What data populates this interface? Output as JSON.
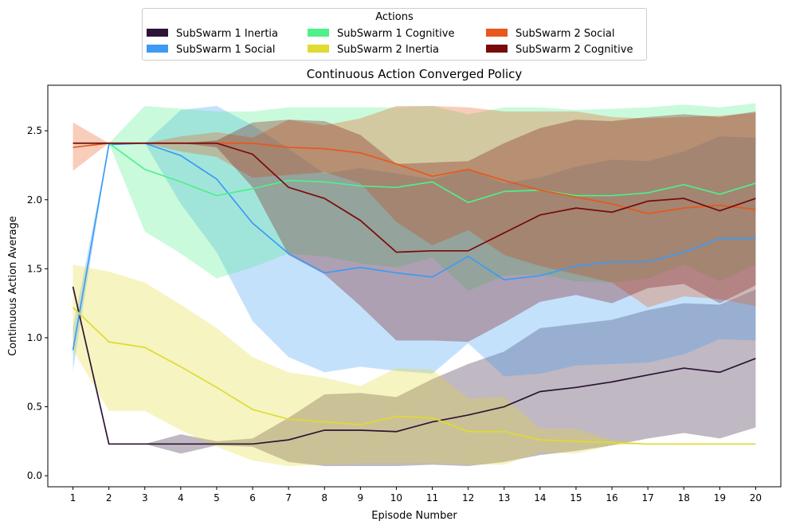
{
  "chart_data": {
    "type": "line",
    "title": "Continuous Action Converged Policy",
    "xlabel": "Episode Number",
    "ylabel": "Continuous Action Average",
    "x": [
      1,
      2,
      3,
      4,
      5,
      6,
      7,
      8,
      9,
      10,
      11,
      12,
      13,
      14,
      15,
      16,
      17,
      18,
      19,
      20
    ],
    "xlim": [
      0.3,
      20.7
    ],
    "ylim": [
      -0.08,
      2.83
    ],
    "yticks": [
      "0.0",
      "0.5",
      "1.0",
      "1.5",
      "2.0",
      "2.5"
    ],
    "grid": false,
    "legend": {
      "title": "Actions",
      "placement": "top-center",
      "columns": 3
    },
    "series": [
      {
        "name": "SubSwarm 1 Inertia",
        "color": "#2d1436",
        "values": [
          1.37,
          0.23,
          0.23,
          0.23,
          0.23,
          0.23,
          0.26,
          0.33,
          0.33,
          0.32,
          0.39,
          0.44,
          0.5,
          0.61,
          0.64,
          0.68,
          0.73,
          0.78,
          0.75,
          0.85
        ],
        "lower": [
          1.37,
          0.23,
          0.23,
          0.16,
          0.22,
          0.21,
          0.1,
          0.07,
          0.07,
          0.07,
          0.08,
          0.07,
          0.1,
          0.15,
          0.18,
          0.22,
          0.27,
          0.31,
          0.27,
          0.35
        ],
        "upper": [
          1.37,
          0.23,
          0.23,
          0.3,
          0.25,
          0.27,
          0.42,
          0.59,
          0.6,
          0.57,
          0.7,
          0.81,
          0.9,
          1.07,
          1.1,
          1.13,
          1.2,
          1.25,
          1.24,
          1.35
        ]
      },
      {
        "name": "SubSwarm 1 Social",
        "color": "#3d9bf5",
        "values": [
          0.91,
          2.4,
          2.41,
          2.32,
          2.15,
          1.83,
          1.61,
          1.47,
          1.51,
          1.47,
          1.44,
          1.59,
          1.42,
          1.45,
          1.52,
          1.55,
          1.55,
          1.62,
          1.72,
          1.72
        ],
        "lower": [
          0.76,
          2.4,
          2.41,
          1.97,
          1.62,
          1.12,
          0.86,
          0.75,
          0.79,
          0.76,
          0.74,
          0.96,
          0.72,
          0.74,
          0.8,
          0.81,
          0.82,
          0.88,
          0.99,
          0.98
        ],
        "upper": [
          1.07,
          2.4,
          2.41,
          2.65,
          2.68,
          2.54,
          2.37,
          2.19,
          2.23,
          2.19,
          2.15,
          2.22,
          2.12,
          2.16,
          2.24,
          2.29,
          2.28,
          2.35,
          2.46,
          2.45
        ]
      },
      {
        "name": "SubSwarm 1 Cognitive",
        "color": "#4ef08a",
        "values": [
          2.41,
          2.41,
          2.22,
          2.13,
          2.03,
          2.08,
          2.14,
          2.13,
          2.1,
          2.09,
          2.13,
          1.98,
          2.06,
          2.07,
          2.03,
          2.03,
          2.05,
          2.11,
          2.04,
          2.12
        ],
        "lower": [
          2.41,
          2.41,
          1.77,
          1.61,
          1.43,
          1.51,
          1.61,
          1.59,
          1.54,
          1.51,
          1.58,
          1.34,
          1.45,
          1.46,
          1.41,
          1.4,
          1.43,
          1.53,
          1.41,
          1.53
        ],
        "upper": [
          2.41,
          2.41,
          2.68,
          2.66,
          2.64,
          2.64,
          2.67,
          2.67,
          2.67,
          2.67,
          2.68,
          2.62,
          2.67,
          2.67,
          2.65,
          2.66,
          2.67,
          2.69,
          2.67,
          2.7
        ]
      },
      {
        "name": "SubSwarm 2 Inertia",
        "color": "#e0da32",
        "values": [
          1.22,
          0.97,
          0.93,
          0.79,
          0.64,
          0.48,
          0.41,
          0.39,
          0.37,
          0.43,
          0.42,
          0.32,
          0.32,
          0.26,
          0.25,
          0.24,
          0.23,
          0.23,
          0.23,
          0.23
        ],
        "lower": [
          0.91,
          0.47,
          0.47,
          0.33,
          0.21,
          0.11,
          0.07,
          0.08,
          0.09,
          0.09,
          0.09,
          0.08,
          0.08,
          0.17,
          0.16,
          0.22,
          0.23,
          0.23,
          0.23,
          0.23
        ],
        "upper": [
          1.53,
          1.48,
          1.4,
          1.24,
          1.07,
          0.86,
          0.75,
          0.71,
          0.65,
          0.78,
          0.77,
          0.56,
          0.57,
          0.34,
          0.34,
          0.26,
          0.23,
          0.23,
          0.23,
          0.23
        ]
      },
      {
        "name": "SubSwarm 2 Social",
        "color": "#e8581a",
        "values": [
          2.38,
          2.41,
          2.41,
          2.41,
          2.41,
          2.41,
          2.38,
          2.37,
          2.34,
          2.26,
          2.17,
          2.22,
          2.14,
          2.07,
          2.02,
          1.97,
          1.9,
          1.94,
          1.96,
          1.93
        ],
        "lower": [
          2.21,
          2.41,
          2.41,
          2.35,
          2.31,
          2.16,
          2.18,
          2.2,
          2.12,
          1.84,
          1.67,
          1.78,
          1.6,
          1.52,
          1.46,
          1.4,
          1.22,
          1.3,
          1.28,
          1.23
        ],
        "upper": [
          2.56,
          2.41,
          2.41,
          2.46,
          2.49,
          2.45,
          2.58,
          2.54,
          2.59,
          2.68,
          2.68,
          2.67,
          2.64,
          2.64,
          2.64,
          2.6,
          2.59,
          2.6,
          2.61,
          2.63
        ]
      },
      {
        "name": "SubSwarm 2 Cognitive",
        "color": "#780a0a",
        "values": [
          2.41,
          2.41,
          2.41,
          2.41,
          2.41,
          2.33,
          2.09,
          2.01,
          1.85,
          1.62,
          1.63,
          1.63,
          1.76,
          1.89,
          1.94,
          1.91,
          1.99,
          2.01,
          1.92,
          2.01
        ],
        "lower": [
          2.41,
          2.41,
          2.41,
          2.41,
          2.38,
          2.09,
          1.6,
          1.46,
          1.23,
          0.98,
          0.98,
          0.97,
          1.11,
          1.26,
          1.31,
          1.25,
          1.36,
          1.39,
          1.25,
          1.38
        ],
        "upper": [
          2.41,
          2.41,
          2.41,
          2.41,
          2.43,
          2.56,
          2.58,
          2.57,
          2.47,
          2.26,
          2.27,
          2.28,
          2.41,
          2.52,
          2.58,
          2.57,
          2.6,
          2.62,
          2.6,
          2.64
        ]
      }
    ]
  }
}
